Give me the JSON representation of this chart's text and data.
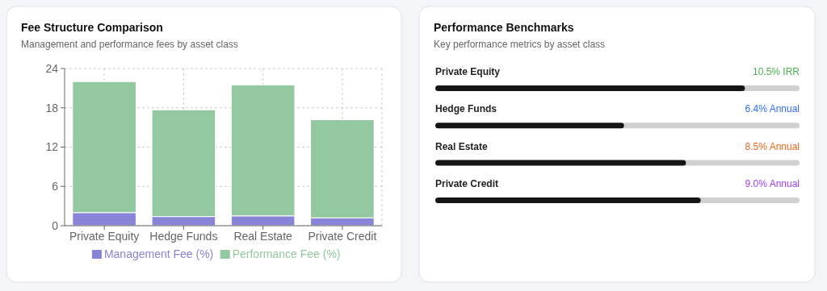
{
  "chart_data": [
    {
      "type": "bar",
      "title": "Fee Structure Comparison",
      "subtitle": "Management and performance fees by asset class",
      "categories": [
        "Private Equity",
        "Hedge Funds",
        "Real Estate",
        "Private Credit"
      ],
      "stacked": true,
      "series": [
        {
          "name": "Management Fee (%)",
          "color": "#8884d8",
          "values": [
            2,
            1.4,
            1.5,
            1.2
          ]
        },
        {
          "name": "Performance Fee (%)",
          "color": "#93c8a0",
          "values": [
            20,
            16.3,
            20,
            15
          ]
        }
      ],
      "ylim": [
        0,
        24
      ],
      "yticks": [
        0,
        6,
        12,
        18,
        24
      ],
      "grid": true,
      "legend": "bottom"
    },
    {
      "type": "bar",
      "title": "Performance Benchmarks",
      "subtitle": "Key performance metrics by asset class",
      "orientation": "horizontal",
      "categories": [
        "Private Equity",
        "Hedge Funds",
        "Real Estate",
        "Private Credit"
      ],
      "series": [
        {
          "color": "#151515",
          "values": [
            10.5,
            6.4,
            8.5,
            9.0
          ],
          "value_labels": [
            "10.5% IRR",
            "6.4% Annual",
            "8.5% Annual",
            "9.0% Annual"
          ]
        }
      ]
    }
  ]
}
